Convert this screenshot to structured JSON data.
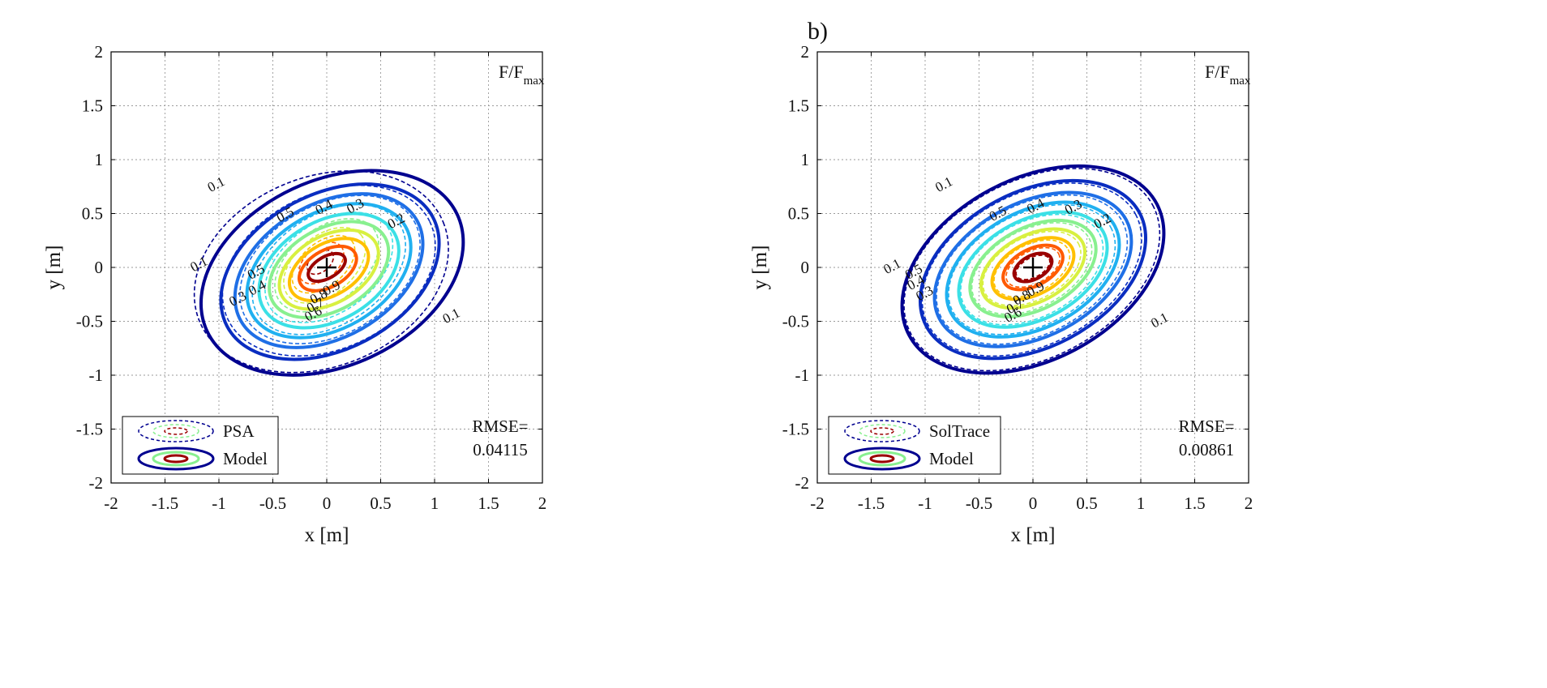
{
  "figure": {
    "panel_label": "b)"
  },
  "colors": {
    "levels": {
      "0.1": "#00008f",
      "0.2": "#0a2dc0",
      "0.3": "#1f6fe6",
      "0.4": "#20b0f0",
      "0.5": "#3be0e6",
      "0.6": "#88f08f",
      "0.7": "#d8f040",
      "0.8": "#ffc000",
      "0.9": "#ff5a00",
      "1.0": "#9a0000"
    },
    "marker": "#000000"
  },
  "chart_data": [
    {
      "type": "contour",
      "corner_label_main": "F/F",
      "corner_label_sub": "max",
      "xlabel": "x [m]",
      "ylabel": "y [m]",
      "xlim": [
        -2,
        2
      ],
      "ylim": [
        -2,
        2
      ],
      "xticks": [
        "-2",
        "-1.5",
        "-1",
        "-0.5",
        "0",
        "0.5",
        "1",
        "1.5",
        "2"
      ],
      "yticks": [
        "-2",
        "-1.5",
        "-1",
        "-0.5",
        "0",
        "0.5",
        "1",
        "1.5",
        "2"
      ],
      "grid": true,
      "legend_position": "bottom-left",
      "legend": [
        "PSA",
        "Model"
      ],
      "rmse_label": "RMSE=",
      "rmse_value": "0.04115",
      "center_marker": [
        0,
        0
      ],
      "series": [
        {
          "name": "Model",
          "style": "solid",
          "levels": [
            {
              "level": 0.1,
              "a": 1.28,
              "b": 0.86,
              "angle_deg": -25,
              "cx": 0.05,
              "cy": -0.05
            },
            {
              "level": 0.2,
              "a": 1.08,
              "b": 0.72,
              "angle_deg": -28,
              "cx": 0.03,
              "cy": -0.04
            },
            {
              "level": 0.3,
              "a": 0.94,
              "b": 0.62,
              "angle_deg": -30,
              "cx": 0.02,
              "cy": -0.03
            },
            {
              "level": 0.4,
              "a": 0.82,
              "b": 0.54,
              "angle_deg": -30,
              "cx": 0.02,
              "cy": -0.03
            },
            {
              "level": 0.5,
              "a": 0.7,
              "b": 0.46,
              "angle_deg": -30,
              "cx": 0.02,
              "cy": -0.03
            },
            {
              "level": 0.6,
              "a": 0.6,
              "b": 0.38,
              "angle_deg": -30,
              "cx": 0.02,
              "cy": -0.02
            },
            {
              "level": 0.7,
              "a": 0.5,
              "b": 0.31,
              "angle_deg": -30,
              "cx": 0.02,
              "cy": -0.02
            },
            {
              "level": 0.8,
              "a": 0.4,
              "b": 0.24,
              "angle_deg": -30,
              "cx": 0.02,
              "cy": -0.02
            },
            {
              "level": 0.9,
              "a": 0.29,
              "b": 0.17,
              "angle_deg": -30,
              "cx": 0.01,
              "cy": -0.01
            },
            {
              "level": 1.0,
              "a": 0.19,
              "b": 0.1,
              "angle_deg": -30,
              "cx": 0.0,
              "cy": 0.0
            }
          ]
        },
        {
          "name": "PSA",
          "style": "dashed",
          "levels": [
            {
              "level": 0.1,
              "a": 1.22,
              "b": 0.88,
              "angle_deg": -22,
              "cx": -0.05,
              "cy": -0.04
            },
            {
              "level": 0.2,
              "a": 1.04,
              "b": 0.72,
              "angle_deg": -26,
              "cx": 0.02,
              "cy": -0.03
            },
            {
              "level": 0.3,
              "a": 0.9,
              "b": 0.6,
              "angle_deg": -30,
              "cx": 0.03,
              "cy": -0.02
            },
            {
              "level": 0.4,
              "a": 0.78,
              "b": 0.51,
              "angle_deg": -33,
              "cx": 0.02,
              "cy": -0.02
            },
            {
              "level": 0.5,
              "a": 0.66,
              "b": 0.42,
              "angle_deg": -35,
              "cx": 0.02,
              "cy": 0.0
            },
            {
              "level": 0.6,
              "a": 0.55,
              "b": 0.34,
              "angle_deg": -38,
              "cx": 0.0,
              "cy": 0.02
            },
            {
              "level": 0.7,
              "a": 0.44,
              "b": 0.27,
              "angle_deg": -40,
              "cx": -0.02,
              "cy": 0.02
            },
            {
              "level": 0.8,
              "a": 0.34,
              "b": 0.2,
              "angle_deg": -40,
              "cx": -0.03,
              "cy": 0.03
            },
            {
              "level": 0.9,
              "a": 0.24,
              "b": 0.15,
              "angle_deg": -40,
              "cx": -0.05,
              "cy": 0.04
            },
            {
              "level": 1.0,
              "a": 0.14,
              "b": 0.09,
              "angle_deg": -40,
              "cx": -0.06,
              "cy": 0.05
            }
          ]
        }
      ],
      "labels": [
        {
          "text": "0.1",
          "x": -1.02,
          "y": 0.76
        },
        {
          "text": "0.1",
          "x": 1.16,
          "y": -0.46
        },
        {
          "text": "0.1",
          "x": -1.18,
          "y": 0.02
        },
        {
          "text": "0.2",
          "x": 0.65,
          "y": 0.42
        },
        {
          "text": "0.3",
          "x": 0.27,
          "y": 0.56
        },
        {
          "text": "0.3",
          "x": -0.82,
          "y": -0.3
        },
        {
          "text": "0.4",
          "x": -0.02,
          "y": 0.55
        },
        {
          "text": "0.4",
          "x": -0.64,
          "y": -0.2
        },
        {
          "text": "0.5",
          "x": -0.38,
          "y": 0.48
        },
        {
          "text": "0.5",
          "x": -0.65,
          "y": -0.05
        },
        {
          "text": "0.6",
          "x": -0.12,
          "y": -0.44
        },
        {
          "text": "0.7",
          "x": -0.1,
          "y": -0.36
        },
        {
          "text": "0.8",
          "x": -0.07,
          "y": -0.28
        },
        {
          "text": "0.9",
          "x": 0.05,
          "y": -0.2
        }
      ]
    },
    {
      "type": "contour",
      "corner_label_main": "F/F",
      "corner_label_sub": "max",
      "xlabel": "x [m]",
      "ylabel": "y [m]",
      "xlim": [
        -2,
        2
      ],
      "ylim": [
        -2,
        2
      ],
      "xticks": [
        "-2",
        "-1.5",
        "-1",
        "-0.5",
        "0",
        "0.5",
        "1",
        "1.5",
        "2"
      ],
      "yticks": [
        "-2",
        "-1.5",
        "-1",
        "-0.5",
        "0",
        "0.5",
        "1",
        "1.5",
        "2"
      ],
      "grid": true,
      "legend_position": "bottom-left",
      "legend": [
        "SolTrace",
        "Model"
      ],
      "rmse_label": "RMSE=",
      "rmse_value": "0.00861",
      "center_marker": [
        0,
        0
      ],
      "series": [
        {
          "name": "Model",
          "style": "solid",
          "levels": [
            {
              "level": 0.1,
              "a": 1.3,
              "b": 0.84,
              "angle_deg": -28,
              "cx": 0.0,
              "cy": -0.02
            },
            {
              "level": 0.2,
              "a": 1.12,
              "b": 0.72,
              "angle_deg": -28,
              "cx": 0.0,
              "cy": -0.02
            },
            {
              "level": 0.3,
              "a": 0.98,
              "b": 0.62,
              "angle_deg": -28,
              "cx": 0.0,
              "cy": -0.02
            },
            {
              "level": 0.4,
              "a": 0.86,
              "b": 0.54,
              "angle_deg": -28,
              "cx": 0.0,
              "cy": -0.02
            },
            {
              "level": 0.5,
              "a": 0.74,
              "b": 0.46,
              "angle_deg": -28,
              "cx": 0.0,
              "cy": -0.02
            },
            {
              "level": 0.6,
              "a": 0.63,
              "b": 0.38,
              "angle_deg": -28,
              "cx": 0.0,
              "cy": -0.01
            },
            {
              "level": 0.7,
              "a": 0.52,
              "b": 0.31,
              "angle_deg": -28,
              "cx": 0.0,
              "cy": -0.01
            },
            {
              "level": 0.8,
              "a": 0.41,
              "b": 0.24,
              "angle_deg": -28,
              "cx": 0.0,
              "cy": -0.01
            },
            {
              "level": 0.9,
              "a": 0.3,
              "b": 0.17,
              "angle_deg": -28,
              "cx": 0.0,
              "cy": 0.0
            },
            {
              "level": 1.0,
              "a": 0.19,
              "b": 0.11,
              "angle_deg": -28,
              "cx": 0.0,
              "cy": 0.0
            }
          ]
        },
        {
          "name": "SolTrace",
          "style": "dashed",
          "levels": [
            {
              "level": 0.1,
              "a": 1.27,
              "b": 0.82,
              "angle_deg": -28,
              "cx": -0.01,
              "cy": -0.02
            },
            {
              "level": 0.2,
              "a": 1.09,
              "b": 0.7,
              "angle_deg": -28,
              "cx": -0.01,
              "cy": -0.02
            },
            {
              "level": 0.3,
              "a": 0.95,
              "b": 0.6,
              "angle_deg": -28,
              "cx": -0.01,
              "cy": -0.02
            },
            {
              "level": 0.4,
              "a": 0.83,
              "b": 0.52,
              "angle_deg": -28,
              "cx": -0.01,
              "cy": -0.02
            },
            {
              "level": 0.5,
              "a": 0.71,
              "b": 0.44,
              "angle_deg": -28,
              "cx": -0.01,
              "cy": -0.02
            },
            {
              "level": 0.6,
              "a": 0.6,
              "b": 0.36,
              "angle_deg": -28,
              "cx": -0.01,
              "cy": -0.01
            },
            {
              "level": 0.7,
              "a": 0.49,
              "b": 0.29,
              "angle_deg": -28,
              "cx": -0.01,
              "cy": -0.01
            },
            {
              "level": 0.8,
              "a": 0.38,
              "b": 0.22,
              "angle_deg": -28,
              "cx": -0.01,
              "cy": -0.01
            },
            {
              "level": 0.9,
              "a": 0.27,
              "b": 0.15,
              "angle_deg": -28,
              "cx": 0.0,
              "cy": 0.0
            },
            {
              "level": 1.0,
              "a": 0.17,
              "b": 0.09,
              "angle_deg": -28,
              "cx": 0.0,
              "cy": 0.0
            }
          ]
        }
      ],
      "labels": [
        {
          "text": "0.1",
          "x": -0.82,
          "y": 0.76
        },
        {
          "text": "0.1",
          "x": 1.18,
          "y": -0.5
        },
        {
          "text": "0.1",
          "x": -1.3,
          "y": 0.0
        },
        {
          "text": "0.2",
          "x": 0.65,
          "y": 0.42
        },
        {
          "text": "0.3",
          "x": 0.38,
          "y": 0.55
        },
        {
          "text": "0.3",
          "x": -1.0,
          "y": -0.25
        },
        {
          "text": "0.4",
          "x": 0.03,
          "y": 0.56
        },
        {
          "text": "0.4",
          "x": -1.08,
          "y": -0.15
        },
        {
          "text": "0.5",
          "x": -0.32,
          "y": 0.49
        },
        {
          "text": "0.5",
          "x": -1.1,
          "y": -0.05
        },
        {
          "text": "0.6",
          "x": -0.18,
          "y": -0.45
        },
        {
          "text": "0.7",
          "x": -0.16,
          "y": -0.37
        },
        {
          "text": "0.8",
          "x": -0.1,
          "y": -0.29
        },
        {
          "text": "0.9",
          "x": 0.03,
          "y": -0.21
        }
      ]
    }
  ]
}
